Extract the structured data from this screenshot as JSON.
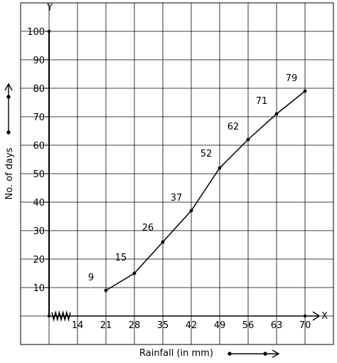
{
  "chart_data": {
    "type": "line",
    "title": "",
    "xlabel": "Rainfall (in mm)",
    "ylabel": "No. of days",
    "x_axis_letter": "X",
    "y_axis_letter": "Y",
    "x_ticks": [
      "14",
      "21",
      "28",
      "35",
      "42",
      "49",
      "56",
      "63",
      "70"
    ],
    "y_ticks": [
      "10",
      "20",
      "30",
      "40",
      "50",
      "60",
      "70",
      "80",
      "90",
      "100"
    ],
    "xlim": [
      7,
      70
    ],
    "ylim": [
      0,
      100
    ],
    "grid": true,
    "axis_break": "x",
    "series": [
      {
        "x": [
          21,
          28,
          35,
          42,
          49,
          56,
          63,
          70
        ],
        "values": [
          9,
          15,
          26,
          37,
          52,
          62,
          71,
          79
        ],
        "labels": [
          "9",
          "15",
          "26",
          "37",
          "52",
          "62",
          "71",
          "79"
        ]
      }
    ]
  }
}
